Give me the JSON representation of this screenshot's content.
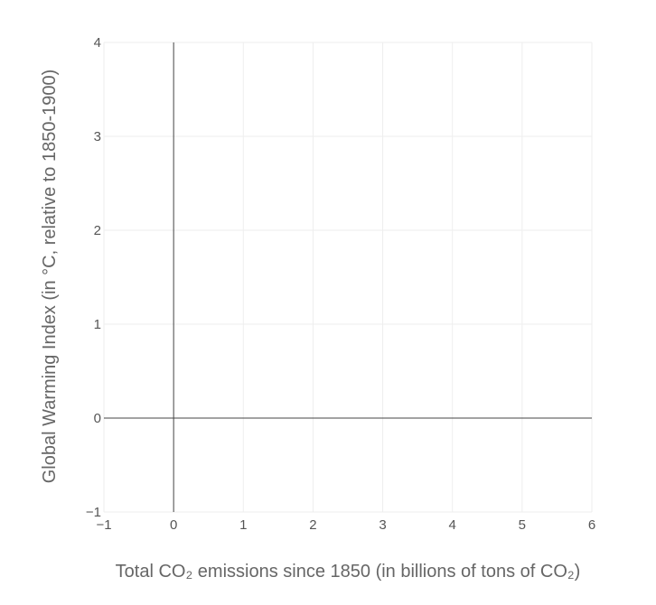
{
  "chart_data": {
    "type": "scatter",
    "title": "",
    "xlabel": "Total CO₂ emissions since 1850 (in billions of tons of CO₂)",
    "ylabel": "Global Warming Index (in °C, relative to 1850-1900)",
    "xlim": [
      -1,
      6
    ],
    "ylim": [
      -1,
      4
    ],
    "x_ticks": [
      -1,
      0,
      1,
      2,
      3,
      4,
      5,
      6
    ],
    "x_tick_labels": [
      "−1",
      "0",
      "1",
      "2",
      "3",
      "4",
      "5",
      "6"
    ],
    "y_ticks": [
      -1,
      0,
      1,
      2,
      3,
      4
    ],
    "y_tick_labels": [
      "−1",
      "0",
      "1",
      "2",
      "3",
      "4"
    ],
    "grid": true,
    "zero_lines": true,
    "series": []
  },
  "colors": {
    "grid": "#eeeeee",
    "zero_line": "#444444",
    "tick_text": "#555555",
    "axis_title": "#666666"
  }
}
